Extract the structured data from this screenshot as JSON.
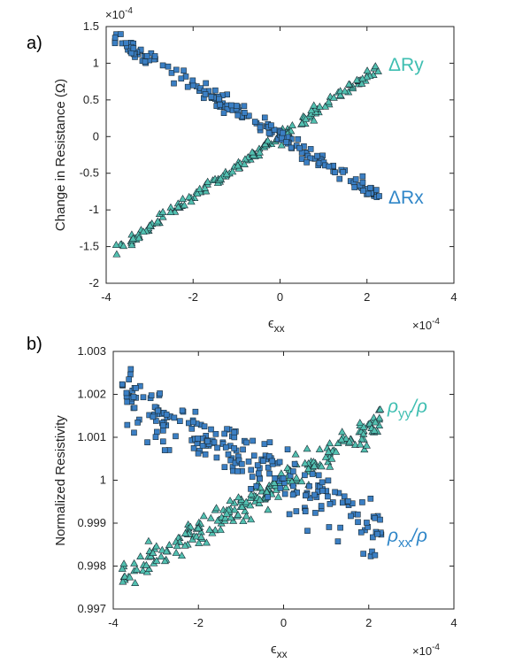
{
  "colors": {
    "square_fill": "#3B7FC4",
    "triangle_fill": "#52C0B0",
    "rx_label": "#2F86C8",
    "ry_label": "#3EBEB1",
    "axis": "#262626"
  },
  "chart_data": [
    {
      "type": "scatter",
      "panel_label": "a)",
      "xlabel": "ϵ",
      "xlabel_sub": "xx",
      "ylabel": "Change in Resistance (Ω)",
      "xlim": [
        -4,
        4
      ],
      "ylim": [
        -2,
        1.5
      ],
      "xticks": [
        "-4",
        "-2",
        "0",
        "2",
        "4"
      ],
      "yticks": [
        "-2",
        "-1.5",
        "-1",
        "-0.5",
        "0",
        "0.5",
        "1",
        "1.5"
      ],
      "x_multiplier": "×10",
      "x_multiplier_exp": "-4",
      "y_multiplier": "×10",
      "y_multiplier_exp": "-4",
      "series": [
        {
          "name": "ΔRy",
          "marker": "triangle",
          "slope": 0.4146,
          "intercept": 0.0,
          "x_range": [
            -3.8,
            2.3
          ],
          "noise": 0.035,
          "n": 180
        },
        {
          "name": "ΔRx",
          "marker": "square",
          "slope": -0.3508,
          "intercept": 0.0,
          "x_range": [
            -3.8,
            2.3
          ],
          "noise": 0.06,
          "n": 180
        }
      ]
    },
    {
      "type": "scatter",
      "panel_label": "b)",
      "xlabel": "ϵ",
      "xlabel_sub": "xx",
      "ylabel": "Normalized Resistivity",
      "xlim": [
        -4,
        4
      ],
      "ylim": [
        0.997,
        1.003
      ],
      "xticks": [
        "-4",
        "-2",
        "0",
        "2",
        "4"
      ],
      "yticks": [
        "0.997",
        "0.998",
        "0.999",
        "1",
        "1.001",
        "1.002",
        "1.003"
      ],
      "x_multiplier": "×10",
      "x_multiplier_exp": "-4",
      "series": [
        {
          "name": "ρyy/ρ",
          "label_main": "ρ",
          "label_sub": "yy",
          "label_tail": "/ρ",
          "marker": "triangle",
          "slope": 0.000598,
          "intercept": 1.0,
          "x_range": [
            -3.8,
            2.3
          ],
          "noise": 0.00017,
          "n": 230
        },
        {
          "name": "ρxx/ρ",
          "label_main": "ρ",
          "label_sub": "xx",
          "label_tail": "/ρ",
          "marker": "square",
          "slope": -0.000525,
          "intercept": 1.0,
          "x_range": [
            -3.8,
            2.3
          ],
          "noise": 0.00032,
          "n": 230
        }
      ]
    }
  ]
}
